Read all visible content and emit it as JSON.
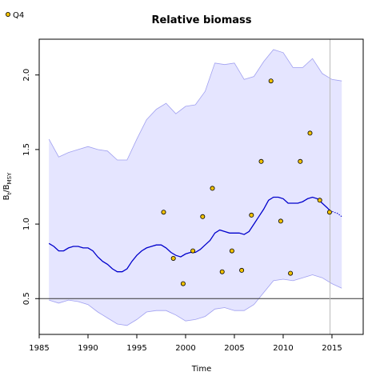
{
  "chart_data": {
    "type": "line",
    "title": "Relative biomass",
    "xlabel": "Time",
    "ylabel": {
      "base": "B",
      "sub1": "t",
      "mid": "/B",
      "sub2": "MSY"
    },
    "xlim": [
      1985,
      2018.2
    ],
    "ylim": [
      0.26,
      2.24
    ],
    "x_ticks": [
      1985,
      1990,
      1995,
      2000,
      2005,
      2010,
      2015
    ],
    "y_ticks": [
      0.5,
      1.0,
      1.5,
      2.0
    ],
    "y_tick_labels": [
      "0.5",
      "1.0",
      "1.5",
      "2.0"
    ],
    "reference_line_y": 0.5,
    "vertical_line_x": 2014.8,
    "legend": {
      "label": "Q4",
      "position": "top-left"
    },
    "colors": {
      "line": "#0000cc",
      "band_fill": "#e5e5ff",
      "band_edge": "#a0a0f0",
      "point_fill": "#f2c200",
      "ref_line": "#333333",
      "vline": "#bbbbbb"
    },
    "series": [
      {
        "role": "estimate",
        "x": [
          1986.0,
          1986.5,
          1987.0,
          1987.5,
          1988.0,
          1988.5,
          1989.0,
          1989.5,
          1990.0,
          1990.5,
          1991.0,
          1991.5,
          1992.0,
          1992.5,
          1993.0,
          1993.5,
          1994.0,
          1994.5,
          1995.0,
          1995.5,
          1996.0,
          1996.5,
          1997.0,
          1997.5,
          1998.0,
          1998.5,
          1999.0,
          1999.5,
          2000.0,
          2000.5,
          2001.0,
          2001.5,
          2002.0,
          2002.5,
          2003.0,
          2003.5,
          2004.0,
          2004.5,
          2005.0,
          2005.5,
          2006.0,
          2006.5,
          2007.0,
          2007.5,
          2008.0,
          2008.5,
          2009.0,
          2009.5,
          2010.0,
          2010.5,
          2011.0,
          2011.5,
          2012.0,
          2012.5,
          2013.0,
          2013.5,
          2014.0,
          2014.5,
          2014.8
        ],
        "values": [
          0.87,
          0.85,
          0.82,
          0.82,
          0.84,
          0.85,
          0.85,
          0.84,
          0.84,
          0.82,
          0.78,
          0.75,
          0.73,
          0.7,
          0.68,
          0.68,
          0.7,
          0.75,
          0.79,
          0.82,
          0.84,
          0.85,
          0.86,
          0.86,
          0.84,
          0.81,
          0.79,
          0.78,
          0.8,
          0.81,
          0.81,
          0.83,
          0.86,
          0.89,
          0.94,
          0.96,
          0.95,
          0.94,
          0.94,
          0.94,
          0.93,
          0.95,
          1.0,
          1.05,
          1.1,
          1.16,
          1.18,
          1.18,
          1.17,
          1.14,
          1.14,
          1.14,
          1.15,
          1.17,
          1.18,
          1.17,
          1.14,
          1.11,
          1.09
        ]
      },
      {
        "role": "forecast",
        "x": [
          2014.8,
          2015.2,
          2015.6,
          2016.0
        ],
        "values": [
          1.09,
          1.08,
          1.07,
          1.05
        ]
      },
      {
        "role": "upper",
        "x": [
          1986,
          1987,
          1988,
          1989,
          1990,
          1991,
          1992,
          1993,
          1994,
          1995,
          1996,
          1997,
          1998,
          1999,
          2000,
          2001,
          2002,
          2003,
          2004,
          2005,
          2006,
          2007,
          2008,
          2009,
          2010,
          2011,
          2012,
          2013,
          2014,
          2015,
          2016
        ],
        "values": [
          1.57,
          1.45,
          1.48,
          1.5,
          1.52,
          1.5,
          1.49,
          1.43,
          1.43,
          1.57,
          1.7,
          1.77,
          1.81,
          1.74,
          1.79,
          1.8,
          1.89,
          2.08,
          2.07,
          2.08,
          1.97,
          1.99,
          2.09,
          2.17,
          2.15,
          2.05,
          2.05,
          2.11,
          2.01,
          1.97,
          1.96
        ]
      },
      {
        "role": "lower",
        "x": [
          1986,
          1987,
          1988,
          1989,
          1990,
          1991,
          1992,
          1993,
          1994,
          1995,
          1996,
          1997,
          1998,
          1999,
          2000,
          2001,
          2002,
          2003,
          2004,
          2005,
          2006,
          2007,
          2008,
          2009,
          2010,
          2011,
          2012,
          2013,
          2014,
          2015,
          2016
        ],
        "values": [
          0.49,
          0.47,
          0.49,
          0.48,
          0.46,
          0.41,
          0.37,
          0.33,
          0.32,
          0.36,
          0.41,
          0.42,
          0.42,
          0.39,
          0.35,
          0.36,
          0.38,
          0.43,
          0.44,
          0.42,
          0.42,
          0.46,
          0.54,
          0.62,
          0.63,
          0.62,
          0.64,
          0.66,
          0.64,
          0.6,
          0.57
        ]
      },
      {
        "name": "Q4",
        "role": "observations",
        "x": [
          1997.75,
          1998.75,
          1999.75,
          2000.75,
          2001.75,
          2002.75,
          2003.75,
          2004.75,
          2005.75,
          2006.75,
          2007.75,
          2008.75,
          2009.75,
          2010.75,
          2011.75,
          2012.75,
          2013.75,
          2014.75
        ],
        "values": [
          1.08,
          0.77,
          0.6,
          0.82,
          1.05,
          1.24,
          0.68,
          0.82,
          0.69,
          1.06,
          1.42,
          1.96,
          1.02,
          0.67,
          1.42,
          1.61,
          1.16,
          1.08
        ]
      }
    ]
  }
}
